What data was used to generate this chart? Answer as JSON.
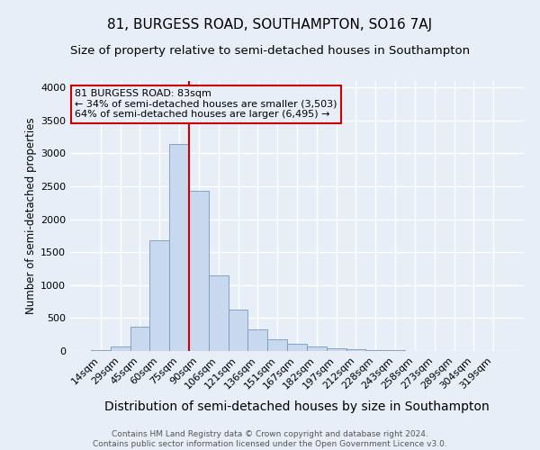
{
  "title": "81, BURGESS ROAD, SOUTHAMPTON, SO16 7AJ",
  "subtitle": "Size of property relative to semi-detached houses in Southampton",
  "xlabel": "Distribution of semi-detached houses by size in Southampton",
  "ylabel": "Number of semi-detached properties",
  "footnote1": "Contains HM Land Registry data © Crown copyright and database right 2024.",
  "footnote2": "Contains public sector information licensed under the Open Government Licence v3.0.",
  "bar_labels": [
    "14sqm",
    "29sqm",
    "45sqm",
    "60sqm",
    "75sqm",
    "90sqm",
    "106sqm",
    "121sqm",
    "136sqm",
    "151sqm",
    "167sqm",
    "182sqm",
    "197sqm",
    "212sqm",
    "228sqm",
    "243sqm",
    "258sqm",
    "273sqm",
    "289sqm",
    "304sqm",
    "319sqm"
  ],
  "bar_values": [
    15,
    70,
    370,
    1680,
    3150,
    2430,
    1150,
    630,
    330,
    175,
    110,
    65,
    45,
    30,
    15,
    10,
    5,
    3,
    2,
    1,
    0
  ],
  "bar_color": "#c8d8ee",
  "bar_edge_color": "#7799bb",
  "vline_x": 4.5,
  "vline_color": "#cc0000",
  "annotation_title": "81 BURGESS ROAD: 83sqm",
  "annotation_line1": "← 34% of semi-detached houses are smaller (3,503)",
  "annotation_line2": "64% of semi-detached houses are larger (6,495) →",
  "ylim": [
    0,
    4100
  ],
  "yticks": [
    0,
    500,
    1000,
    1500,
    2000,
    2500,
    3000,
    3500,
    4000
  ],
  "bg_color": "#e8eef8",
  "grid_color": "#ffffff",
  "title_fontsize": 11,
  "subtitle_fontsize": 9.5,
  "xlabel_fontsize": 10,
  "ylabel_fontsize": 8.5,
  "tick_fontsize": 8,
  "annotation_fontsize": 8,
  "footnote_fontsize": 6.5
}
